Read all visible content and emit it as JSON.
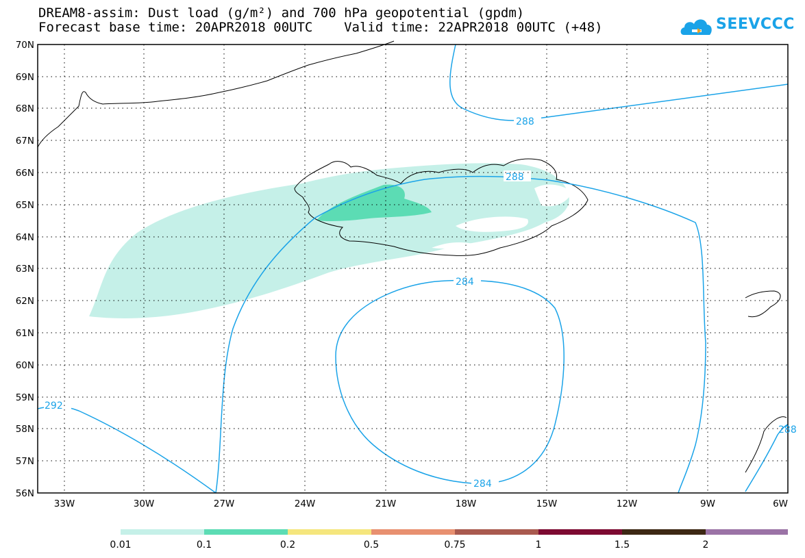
{
  "header": {
    "title_line1": "DREAM8-assim: Dust load (g/m²) and 700 hPa geopotential (gpdm)",
    "title_line2": "Forecast base time: 20APR2018 00UTC    Valid time: 22APR2018 00UTC (+48)",
    "logo_text": "SEEVCCC"
  },
  "map": {
    "lat_labels": [
      "70N",
      "69N",
      "68N",
      "67N",
      "66N",
      "65N",
      "64N",
      "63N",
      "62N",
      "61N",
      "60N",
      "59N",
      "58N",
      "57N",
      "56N"
    ],
    "lon_labels": [
      "33W",
      "30W",
      "27W",
      "24W",
      "21W",
      "18W",
      "15W",
      "12W",
      "9W",
      "6W"
    ],
    "contour_labels": [
      "288",
      "288",
      "284",
      "284",
      "292",
      "288"
    ],
    "contour_color": "#1aa3e8",
    "coast_color": "#000000"
  },
  "colorbar": {
    "labels": [
      "0.01",
      "0.1",
      "0.2",
      "0.5",
      "0.75",
      "1",
      "1.5",
      "2"
    ],
    "colors": [
      "#c5f0e8",
      "#5cdcb4",
      "#f5e67d",
      "#e89070",
      "#a95a4f",
      "#7d0a32",
      "#3d2814",
      "#9b73a6"
    ]
  }
}
